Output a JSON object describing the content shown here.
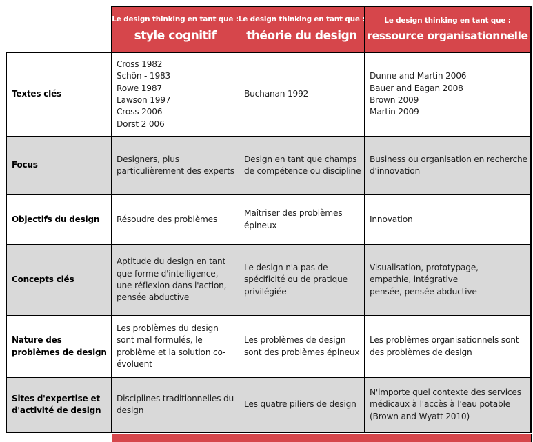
{
  "colors": {
    "header_red": "#d6464b",
    "row_alt_gray": "#d9d9d9",
    "border_black": "#000000",
    "header_text": "#ffffff",
    "body_text": "#1f1f1f"
  },
  "table": {
    "header_prefix": "Le design thinking en tant que :",
    "columns": [
      {
        "title": "style cognitif"
      },
      {
        "title": "théorie du design"
      },
      {
        "title": "ressource organisationnelle"
      }
    ],
    "rows": [
      {
        "label": "Textes clés",
        "cells": [
          [
            "Cross 1982",
            "Schön - 1983",
            "Rowe 1987",
            "Lawson 1997",
            "Cross 2006",
            "Dorst 2 006"
          ],
          "Buchanan 1992",
          [
            "Dunne and Martin 2006",
            "Bauer and Eagan 2008",
            "Brown 2009",
            "Martin 2009"
          ]
        ]
      },
      {
        "label": "Focus",
        "cells": [
          "Designers, plus particulièrement des experts",
          "Design en tant que champs de compétence ou discipline",
          "Business ou organisation en recherche d'innovation"
        ]
      },
      {
        "label": "Objectifs du design",
        "cells": [
          "Résoudre des problèmes",
          "Maîtriser des problèmes épineux",
          "Innovation"
        ]
      },
      {
        "label": "Concepts clés",
        "cells": [
          "Aptitude du design en tant que forme d'intelligence, une réflexion dans l'action, pensée abductive",
          "Le design n'a pas de spécificité ou de pratique privilégiée",
          [
            "Visualisation, prototypage,",
            "empathie, intégrative",
            "pensée, pensée abductive"
          ]
        ]
      },
      {
        "label": "Nature des problèmes de design",
        "cells": [
          "Les problèmes du design sont mal formulés, le problème et la solution co-évoluent",
          "Les problèmes de design sont des problèmes épineux",
          "Les problèmes organisationnels sont des problèmes de design"
        ]
      },
      {
        "label": "Sites d'expertise et d'activité de design",
        "cells": [
          "Disciplines traditionnelles du design",
          "Les quatre piliers de design",
          "N'importe quel contexte des services médicaux à l'accès à l'eau potable (Brown and Wyatt 2010)"
        ]
      }
    ]
  }
}
